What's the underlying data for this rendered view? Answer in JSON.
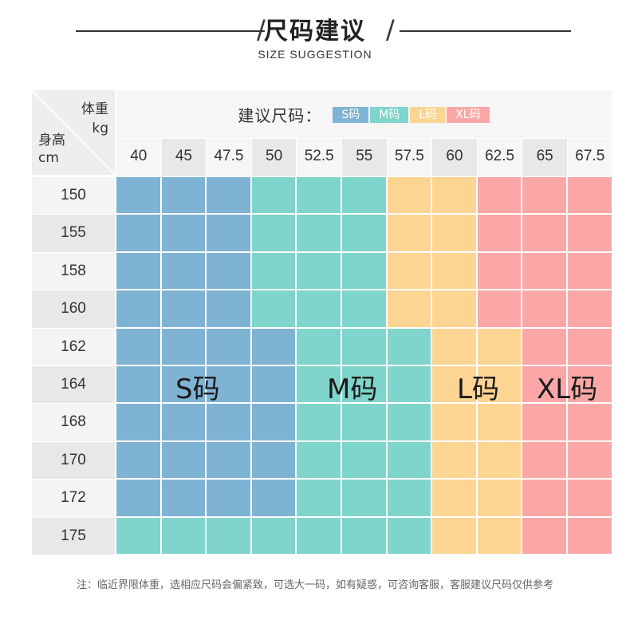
{
  "header": {
    "title": "尺码建议",
    "subtitle": "SIZE SUGGESTION"
  },
  "table": {
    "corner": {
      "weight_label": "体重",
      "weight_unit": "kg",
      "height_label": "身高",
      "height_unit": "cm"
    },
    "legend": {
      "label": "建议尺码：",
      "items": [
        {
          "label": "S码",
          "color": "#7fb3d3"
        },
        {
          "label": "M码",
          "color": "#7fd4cb"
        },
        {
          "label": "L码",
          "color": "#fdd593"
        },
        {
          "label": "XL码",
          "color": "#fba7a8"
        }
      ]
    },
    "weights": [
      "40",
      "45",
      "47.5",
      "50",
      "52.5",
      "55",
      "57.5",
      "60",
      "62.5",
      "65",
      "67.5"
    ],
    "heights": [
      "150",
      "155",
      "158",
      "160",
      "162",
      "164",
      "168",
      "170",
      "172",
      "175"
    ],
    "grid": [
      [
        "S",
        "S",
        "S",
        "M",
        "M",
        "M",
        "L",
        "L",
        "XL",
        "XL",
        "XL"
      ],
      [
        "S",
        "S",
        "S",
        "M",
        "M",
        "M",
        "L",
        "L",
        "XL",
        "XL",
        "XL"
      ],
      [
        "S",
        "S",
        "S",
        "M",
        "M",
        "M",
        "L",
        "L",
        "XL",
        "XL",
        "XL"
      ],
      [
        "S",
        "S",
        "S",
        "M",
        "M",
        "M",
        "L",
        "L",
        "XL",
        "XL",
        "XL"
      ],
      [
        "S",
        "S",
        "S",
        "S",
        "M",
        "M",
        "M",
        "L",
        "L",
        "XL",
        "XL"
      ],
      [
        "S",
        "S",
        "S",
        "S",
        "M",
        "M",
        "M",
        "L",
        "L",
        "XL",
        "XL"
      ],
      [
        "S",
        "S",
        "S",
        "S",
        "M",
        "M",
        "M",
        "L",
        "L",
        "XL",
        "XL"
      ],
      [
        "S",
        "S",
        "S",
        "S",
        "M",
        "M",
        "M",
        "L",
        "L",
        "XL",
        "XL"
      ],
      [
        "S",
        "S",
        "S",
        "S",
        "M",
        "M",
        "M",
        "L",
        "L",
        "XL",
        "XL"
      ],
      [
        "M",
        "M",
        "M",
        "M",
        "M",
        "M",
        "M",
        "L",
        "L",
        "XL",
        "XL"
      ]
    ],
    "size_labels": {
      "S": "S码",
      "M": "M码",
      "L": "L码",
      "XL": "XL码"
    },
    "colors": {
      "S": "#7fb3d3",
      "M": "#7fd4cb",
      "L": "#fdd593",
      "XL": "#fba7a8"
    }
  },
  "footnote": "注：临近界限体重，选相应尺码会偏紧致，可选大一码，如有疑惑，可咨询客服，客服建议尺码仅供参考"
}
